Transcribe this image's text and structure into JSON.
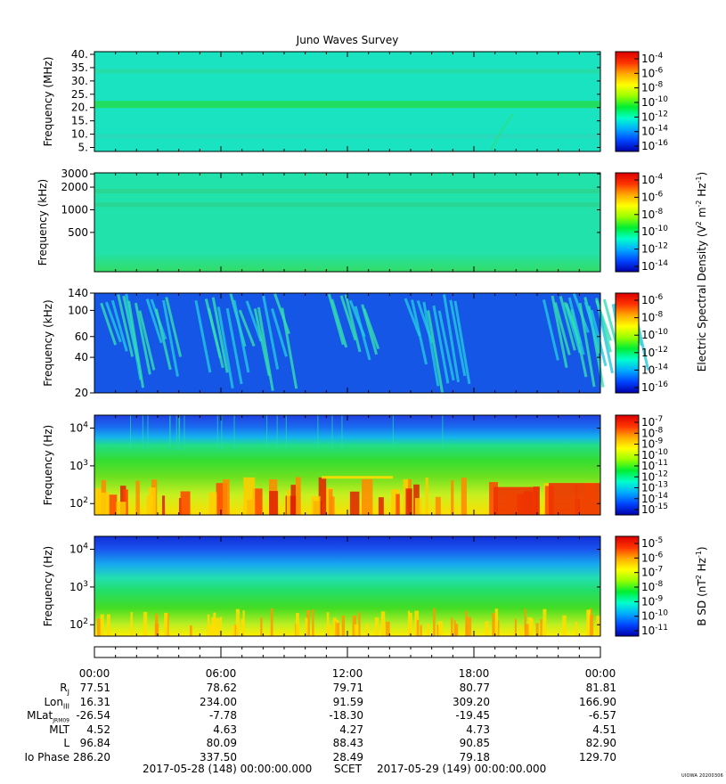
{
  "title": "Juno Waves Survey",
  "credit": "UIOWA 20200306",
  "colors": {
    "background": "#ffffff",
    "frame": "#000000",
    "colorbar_stops": [
      "#0000aa",
      "#0044ff",
      "#00aaff",
      "#00ffcc",
      "#00ee33",
      "#99ff00",
      "#ffff00",
      "#ffaa00",
      "#ff3300",
      "#dd0000"
    ]
  },
  "chart_data": [
    {
      "type": "heatmap",
      "panel": "HFR high band",
      "ylabel": "Frequency (MHz)",
      "yscale": "linear",
      "ylim": [
        3.5,
        41
      ],
      "yticks": [
        "40.",
        "35.",
        "30.",
        "25.",
        "20.",
        "15.",
        "10.",
        "5."
      ],
      "ytick_values": [
        40,
        35,
        30,
        25,
        20,
        15,
        10,
        5
      ],
      "colorbar_label": "",
      "colorbar_ticks": [
        "10-4",
        "10-6",
        "10-8",
        "10-10",
        "10-12",
        "10-14",
        "10-16"
      ],
      "colorbar_exponents": [
        -4,
        -6,
        -8,
        -10,
        -12,
        -14,
        -16
      ],
      "background": "#19e3c0",
      "features": [
        {
          "kind": "band",
          "value": 21.5,
          "color": "#22dd55"
        },
        {
          "kind": "band",
          "value": 33.5,
          "color": "#26dca5"
        },
        {
          "kind": "band",
          "value": 9.0,
          "color": "#2ad7bb"
        }
      ]
    },
    {
      "type": "heatmap",
      "panel": "HFR low band",
      "ylabel": "Frequency (kHz)",
      "yscale": "log",
      "ylim": [
        150,
        3100
      ],
      "yticks": [
        "3000",
        "2000",
        "1000",
        "500"
      ],
      "ytick_values": [
        3000,
        2000,
        1000,
        500
      ],
      "colorbar_label": "",
      "colorbar_ticks": [
        "10-4",
        "10-6",
        "10-8",
        "10-10",
        "10-12",
        "10-14"
      ],
      "colorbar_exponents": [
        -4,
        -6,
        -8,
        -10,
        -12,
        -14
      ],
      "background": "#22e2ac",
      "features": [
        {
          "kind": "band",
          "value": 1750,
          "color": "#2bd590"
        },
        {
          "kind": "band",
          "value": 1150,
          "color": "#2bd590"
        }
      ]
    },
    {
      "type": "heatmap",
      "panel": "LFR high",
      "ylabel": "Frequency (kHz)",
      "yscale": "log",
      "ylim": [
        20,
        140
      ],
      "yticks": [
        "140",
        "100",
        "60",
        "40",
        "20"
      ],
      "ytick_values": [
        140,
        100,
        60,
        40,
        20
      ],
      "colorbar_label": "Electric Spectral Density (V2 m-2 Hz-1)",
      "colorbar_ticks": [
        "10-6",
        "10-8",
        "10-10",
        "10-12",
        "10-14",
        "10-16"
      ],
      "colorbar_exponents": [
        -6,
        -8,
        -10,
        -12,
        -14,
        -16
      ],
      "background": "#1656e6",
      "bursts_hours": [
        0.2,
        1.6,
        4.8,
        7.5,
        11.0,
        14.7,
        21.3,
        21.9,
        23.1
      ]
    },
    {
      "type": "heatmap",
      "panel": "LFR low",
      "ylabel": "Frequency (Hz)",
      "yscale": "log",
      "ylim": [
        50,
        22000
      ],
      "yticks": [
        "10^4",
        "10^3",
        "10^2"
      ],
      "ytick_values": [
        10000,
        1000,
        100
      ],
      "colorbar_label": "",
      "colorbar_ticks": [
        "10-7",
        "10-8",
        "10-9",
        "10-10",
        "10-11",
        "10-12",
        "10-13",
        "10-14",
        "10-15"
      ],
      "colorbar_exponents": [
        -7,
        -8,
        -9,
        -10,
        -11,
        -12,
        -13,
        -14,
        -15
      ],
      "background": "#1a4fe0"
    },
    {
      "type": "heatmap",
      "panel": "Magnetic",
      "ylabel": "Frequency (Hz)",
      "yscale": "log",
      "ylim": [
        50,
        22000
      ],
      "yticks": [
        "10^4",
        "10^3",
        "10^2"
      ],
      "ytick_values": [
        10000,
        1000,
        100
      ],
      "colorbar_label": "B SD (nT2 Hz-1)",
      "colorbar_ticks": [
        "10-5",
        "10-6",
        "10-7",
        "10-8",
        "10-9",
        "10-10",
        "10-11"
      ],
      "colorbar_exponents": [
        -5,
        -6,
        -7,
        -8,
        -9,
        -10,
        -11
      ],
      "background": "#22c8d8"
    }
  ],
  "ephemeris": {
    "x_ticks": [
      "00:00",
      "06:00",
      "12:00",
      "18:00",
      "00:00"
    ],
    "rows": [
      {
        "label": "R",
        "sub": "J",
        "values": [
          "77.51",
          "78.62",
          "79.71",
          "80.77",
          "81.81"
        ]
      },
      {
        "label": "Lon",
        "sub": "III",
        "values": [
          "16.31",
          "234.00",
          "91.59",
          "309.20",
          "166.90"
        ]
      },
      {
        "label": "MLat",
        "sub": "JRM09",
        "values": [
          "-26.54",
          "-7.78",
          "-18.30",
          "-19.45",
          "-6.57"
        ]
      },
      {
        "label": "MLT",
        "sub": "",
        "values": [
          "4.52",
          "4.63",
          "4.27",
          "4.73",
          "4.51"
        ]
      },
      {
        "label": "L",
        "sub": "",
        "values": [
          "96.84",
          "80.09",
          "88.43",
          "90.85",
          "82.90"
        ]
      },
      {
        "label": "Io Phase",
        "sub": "",
        "values": [
          "286.20",
          "337.50",
          "28.49",
          "79.18",
          "129.70"
        ]
      }
    ],
    "start_time": "2017-05-28 (148) 00:00:00.000",
    "scet_label": "SCET",
    "end_time": "2017-05-29 (149) 00:00:00.000"
  }
}
